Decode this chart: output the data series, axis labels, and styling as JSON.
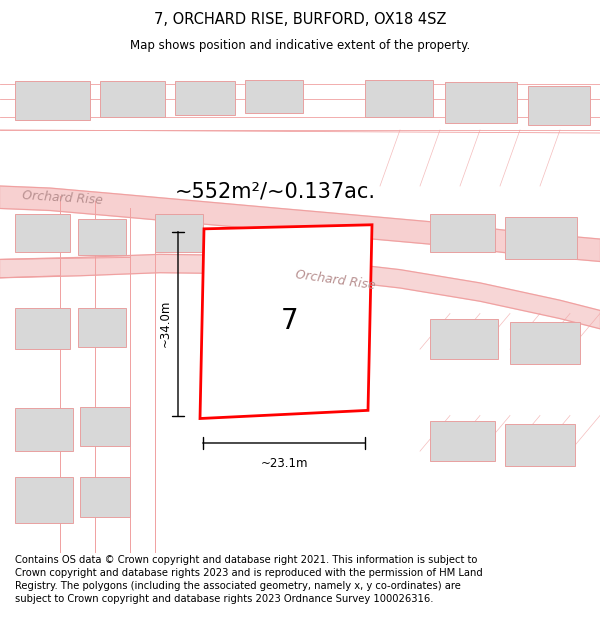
{
  "title": "7, ORCHARD RISE, BURFORD, OX18 4SZ",
  "subtitle": "Map shows position and indicative extent of the property.",
  "area_text": "~552m²/~0.137ac.",
  "plot_number": "7",
  "dim_width": "~23.1m",
  "dim_height": "~34.0m",
  "road_label1": "Orchard Rise",
  "road_label2": "Orchard Rise",
  "footer_text": "Contains OS data © Crown copyright and database right 2021. This information is subject to Crown copyright and database rights 2023 and is reproduced with the permission of HM Land Registry. The polygons (including the associated geometry, namely x, y co-ordinates) are subject to Crown copyright and database rights 2023 Ordnance Survey 100026316.",
  "bg_color": "#ffffff",
  "map_bg": "#ffffff",
  "plot_fill": "#ffffff",
  "plot_edge_color": "#ff0000",
  "road_fill": "#f5c5c5",
  "building_fill": "#d8d8d8",
  "building_edge": "#e8a0a0",
  "line_color": "#f0a0a0",
  "title_fontsize": 10.5,
  "subtitle_fontsize": 8.5,
  "footer_fontsize": 7.2,
  "area_fontsize": 15,
  "plot_num_fontsize": 20,
  "dim_fontsize": 8.5
}
